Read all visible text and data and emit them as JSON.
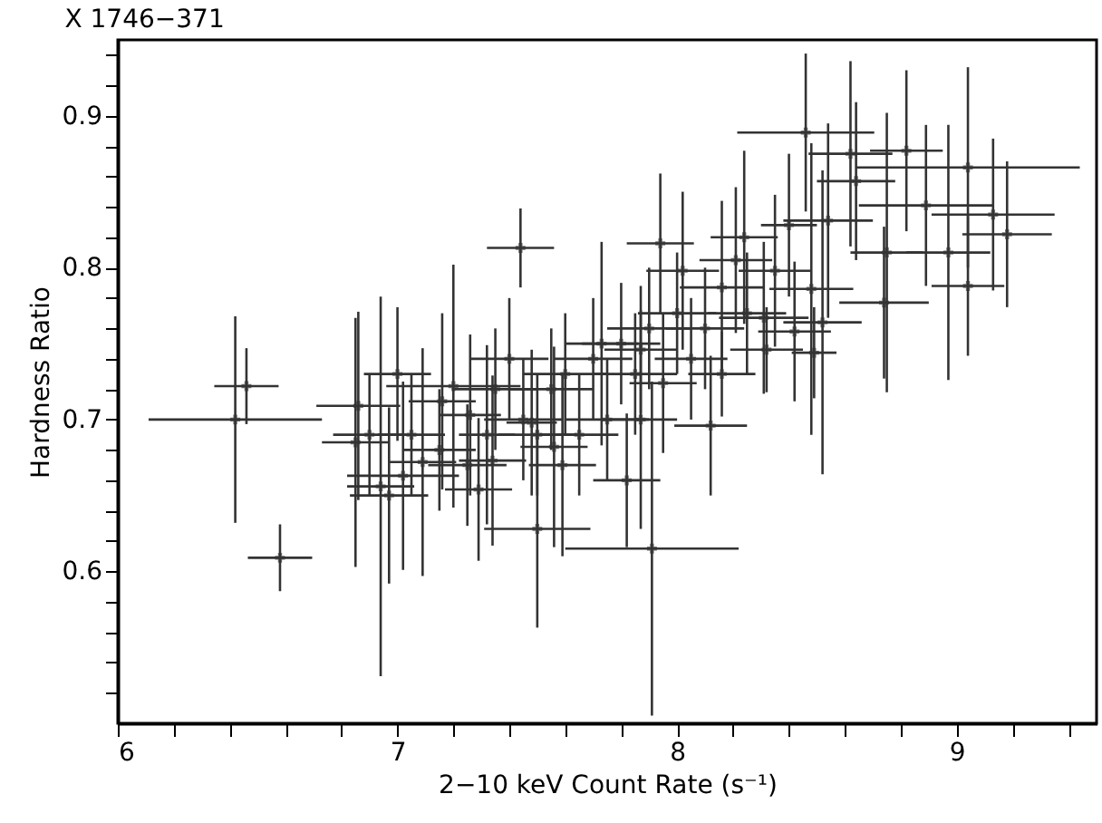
{
  "chart_data": {
    "type": "scatter",
    "title": "X 1746−371",
    "xlabel": "2−10 keV Count Rate (s⁻¹)",
    "ylabel": "Hardness Ratio",
    "xlim": [
      6,
      9.5
    ],
    "ylim": [
      0.5,
      0.95
    ],
    "xticks": [
      6,
      {
        "value": 6.2,
        "label": null
      },
      {
        "value": 6.4,
        "label": null
      },
      {
        "value": 6.6,
        "label": null
      },
      {
        "value": 6.8,
        "label": null
      },
      7,
      {
        "value": 7.2,
        "label": null
      },
      {
        "value": 7.4,
        "label": null
      },
      {
        "value": 7.6,
        "label": null
      },
      {
        "value": 7.8,
        "label": null
      },
      8,
      {
        "value": 8.2,
        "label": null
      },
      {
        "value": 8.4,
        "label": null
      },
      {
        "value": 8.6,
        "label": null
      },
      {
        "value": 8.8,
        "label": null
      },
      9,
      {
        "value": 9.2,
        "label": null
      },
      {
        "value": 9.4,
        "label": null
      }
    ],
    "yticks": [
      {
        "value": 0.52,
        "label": null
      },
      {
        "value": 0.54,
        "label": null
      },
      {
        "value": 0.56,
        "label": null
      },
      {
        "value": 0.58,
        "label": null
      },
      0.6,
      {
        "value": 0.62,
        "label": null
      },
      {
        "value": 0.64,
        "label": null
      },
      {
        "value": 0.66,
        "label": null
      },
      {
        "value": 0.68,
        "label": null
      },
      0.7,
      {
        "value": 0.72,
        "label": null
      },
      {
        "value": 0.74,
        "label": null
      },
      {
        "value": 0.76,
        "label": null
      },
      {
        "value": 0.78,
        "label": null
      },
      0.8,
      {
        "value": 0.82,
        "label": null
      },
      {
        "value": 0.84,
        "label": null
      },
      {
        "value": 0.86,
        "label": null
      },
      {
        "value": 0.88,
        "label": null
      },
      0.9,
      {
        "value": 0.92,
        "label": null
      },
      {
        "value": 0.94,
        "label": null
      }
    ],
    "grid": false,
    "legend": false,
    "marker": "cross",
    "series": [
      {
        "color": "#333333",
        "x": [
          6.46,
          6.42,
          6.58,
          7.44,
          8.46,
          9.04,
          9.13,
          9.18,
          9.04,
          8.82,
          8.89,
          8.62,
          8.64,
          8.97,
          8.75,
          8.74,
          8.54,
          8.4,
          8.24,
          7.94,
          8.02,
          8.21,
          8.16,
          8.35,
          8.48,
          8.52,
          7.73,
          8.31,
          8.42,
          7.87,
          6.86,
          6.85,
          6.94,
          7.0,
          7.02,
          7.09,
          6.97,
          7.16,
          7.2,
          7.32,
          7.29,
          7.34,
          7.5,
          7.59,
          7.56,
          7.48,
          7.26,
          8.12,
          7.91,
          7.82,
          7.95,
          7.87,
          8.32,
          8.16,
          8.49,
          7.35,
          7.45,
          7.6,
          7.7,
          7.75,
          7.8,
          7.55,
          7.65,
          7.05,
          7.15,
          7.4,
          7.9,
          8.0,
          8.05,
          8.25,
          8.1,
          7.85,
          6.9,
          7.25,
          7.5
        ],
        "values": [
          0.722,
          0.7,
          0.609,
          0.813,
          0.889,
          0.866,
          0.835,
          0.822,
          0.788,
          0.877,
          0.841,
          0.875,
          0.857,
          0.81,
          0.81,
          0.777,
          0.831,
          0.828,
          0.82,
          0.816,
          0.798,
          0.805,
          0.787,
          0.798,
          0.786,
          0.764,
          0.75,
          0.767,
          0.758,
          0.746,
          0.709,
          0.685,
          0.656,
          0.73,
          0.663,
          0.672,
          0.65,
          0.712,
          0.722,
          0.69,
          0.654,
          0.673,
          0.628,
          0.67,
          0.682,
          0.698,
          0.703,
          0.696,
          0.615,
          0.66,
          0.724,
          0.7,
          0.746,
          0.73,
          0.744,
          0.72,
          0.7,
          0.73,
          0.74,
          0.7,
          0.75,
          0.72,
          0.69,
          0.69,
          0.68,
          0.74,
          0.76,
          0.77,
          0.74,
          0.77,
          0.76,
          0.73,
          0.69,
          0.67,
          0.69
        ],
        "xerrors": [
          0.115,
          0.31,
          0.115,
          0.12,
          0.245,
          0.4,
          0.22,
          0.16,
          0.13,
          0.13,
          0.24,
          0.15,
          0.14,
          0.15,
          0.13,
          0.16,
          0.16,
          0.1,
          0.12,
          0.12,
          0.13,
          0.13,
          0.15,
          0.13,
          0.15,
          0.14,
          0.13,
          0.16,
          0.13,
          0.13,
          0.15,
          0.12,
          0.12,
          0.12,
          0.2,
          0.12,
          0.14,
          0.12,
          0.24,
          0.1,
          0.12,
          0.12,
          0.19,
          0.12,
          0.12,
          0.09,
          0.11,
          0.13,
          0.31,
          0.12,
          0.12,
          0.13,
          0.13,
          0.12,
          0.08,
          0.15,
          0.14,
          0.15,
          0.14,
          0.15,
          0.14,
          0.15,
          0.14,
          0.12,
          0.13,
          0.14,
          0.15,
          0.14,
          0.13,
          0.14,
          0.14,
          0.15,
          0.13,
          0.14,
          0.14
        ],
        "errors": [
          0.025,
          0.068,
          0.022,
          0.026,
          0.052,
          0.066,
          0.05,
          0.048,
          0.046,
          0.053,
          0.053,
          0.061,
          0.052,
          0.084,
          0.092,
          0.05,
          0.064,
          0.047,
          0.057,
          0.046,
          0.052,
          0.048,
          0.057,
          0.05,
          0.096,
          0.1,
          0.067,
          0.05,
          0.046,
          0.042,
          0.062,
          0.082,
          0.125,
          0.044,
          0.062,
          0.075,
          0.058,
          0.058,
          0.08,
          0.059,
          0.047,
          0.056,
          0.065,
          0.06,
          0.066,
          0.048,
          0.053,
          0.046,
          0.11,
          0.044,
          0.046,
          0.072,
          0.028,
          0.028,
          0.03,
          0.04,
          0.04,
          0.04,
          0.04,
          0.04,
          0.04,
          0.04,
          0.04,
          0.04,
          0.04,
          0.04,
          0.04,
          0.04,
          0.04,
          0.04,
          0.04,
          0.04,
          0.04,
          0.04,
          0.04
        ]
      }
    ]
  }
}
